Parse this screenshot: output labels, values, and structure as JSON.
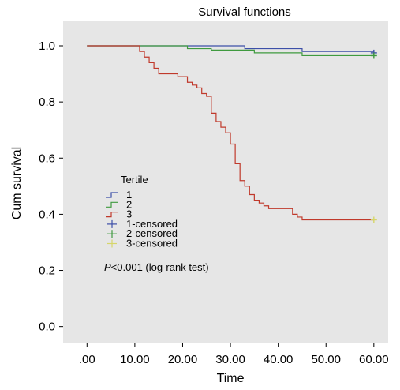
{
  "chart_data": {
    "type": "line",
    "title": "Survival functions",
    "xlabel": "Time",
    "ylabel": "Cum survival",
    "xlim": [
      -5,
      63
    ],
    "ylim": [
      -0.06,
      1.09
    ],
    "x_ticks": [
      0,
      10,
      20,
      30,
      40,
      50,
      60
    ],
    "x_tick_labels": [
      ".00",
      "10.00",
      "20.00",
      "30.00",
      "40.00",
      "50.00",
      "60.00"
    ],
    "y_ticks": [
      0,
      0.2,
      0.4,
      0.6,
      0.8,
      1.0
    ],
    "y_tick_labels": [
      "0.0",
      "0.2",
      "0.4",
      "0.6",
      "0.8",
      "1.0"
    ],
    "legend_title": "Tertile",
    "legend_position": "center-left",
    "plot_background": "#e6e6e6",
    "series": [
      {
        "name": "1",
        "color": "#3d4fa8",
        "x": [
          0,
          21,
          33,
          45,
          60
        ],
        "y": [
          1.0,
          1.0,
          0.99,
          0.98,
          0.975
        ]
      },
      {
        "name": "2",
        "color": "#3f9a3f",
        "x": [
          0,
          21,
          26,
          35,
          45,
          60
        ],
        "y": [
          1.0,
          0.99,
          0.985,
          0.975,
          0.965,
          0.965
        ]
      },
      {
        "name": "3",
        "color": "#c0392b",
        "x": [
          0,
          11,
          12,
          13,
          14,
          15,
          16,
          19,
          21,
          22,
          23,
          24,
          25,
          26,
          27,
          28,
          29,
          30,
          31,
          32,
          33,
          34,
          35,
          36,
          37,
          38,
          43,
          44,
          45,
          60
        ],
        "y": [
          1.0,
          0.98,
          0.96,
          0.94,
          0.92,
          0.9,
          0.9,
          0.89,
          0.87,
          0.86,
          0.85,
          0.83,
          0.82,
          0.76,
          0.73,
          0.71,
          0.69,
          0.65,
          0.58,
          0.52,
          0.5,
          0.47,
          0.45,
          0.44,
          0.43,
          0.42,
          0.4,
          0.39,
          0.38,
          0.38
        ]
      }
    ],
    "censored_legend": [
      {
        "name": "1-censored",
        "color": "#3d4fa8"
      },
      {
        "name": "2-censored",
        "color": "#3f9a3f"
      },
      {
        "name": "3-censored",
        "color": "#d6d66a"
      }
    ],
    "censor_marks": [
      {
        "series": "1-censored",
        "x": 60,
        "y": 0.975,
        "color": "#3d4fa8"
      },
      {
        "series": "2-censored",
        "x": 60,
        "y": 0.965,
        "color": "#3f9a3f"
      },
      {
        "series": "3-censored",
        "x": 60,
        "y": 0.38,
        "color": "#d6d66a"
      }
    ],
    "annotation_italic": "P",
    "annotation_rest": "<0.001 (log-rank test)"
  }
}
